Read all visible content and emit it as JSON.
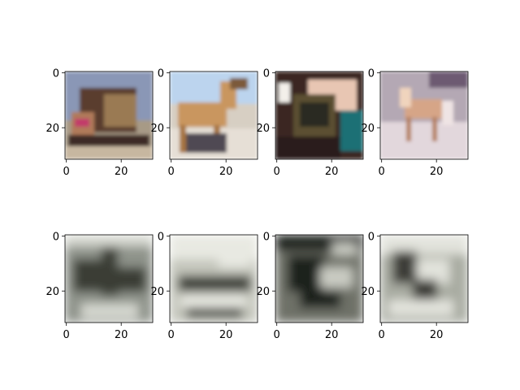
{
  "chart_data": [
    {
      "type": "image",
      "row": "original",
      "subject": "truck",
      "xlim": [
        0,
        31
      ],
      "ylim": [
        31,
        0
      ],
      "xticks": [
        0,
        20
      ],
      "yticks": [
        0,
        20
      ],
      "dominant_colors": [
        "#8a97b6",
        "#5a3e2e",
        "#b07a5a",
        "#c7b7a0"
      ]
    },
    {
      "type": "image",
      "row": "original",
      "subject": "horse",
      "xlim": [
        0,
        31
      ],
      "ylim": [
        31,
        0
      ],
      "xticks": [
        0,
        20
      ],
      "yticks": [
        0,
        20
      ],
      "dominant_colors": [
        "#bcd4ee",
        "#c9965e",
        "#4f4a52",
        "#e6dfd6"
      ]
    },
    {
      "type": "image",
      "row": "original",
      "subject": "cat held in hand",
      "xlim": [
        0,
        31
      ],
      "ylim": [
        31,
        0
      ],
      "xticks": [
        0,
        20
      ],
      "yticks": [
        0,
        20
      ],
      "dominant_colors": [
        "#3a2520",
        "#e8c6b3",
        "#1f6f74",
        "#5c5033"
      ]
    },
    {
      "type": "image",
      "row": "original",
      "subject": "pony",
      "xlim": [
        0,
        31
      ],
      "ylim": [
        31,
        0
      ],
      "xticks": [
        0,
        20
      ],
      "yticks": [
        0,
        20
      ],
      "dominant_colors": [
        "#b4a8b4",
        "#d6a587",
        "#6d5a72",
        "#e2d7dc"
      ]
    },
    {
      "type": "image",
      "row": "reconstruction",
      "subject": "blurry grayscale",
      "xlim": [
        0,
        31
      ],
      "ylim": [
        31,
        0
      ],
      "xticks": [
        0,
        20
      ],
      "yticks": [
        0,
        20
      ],
      "dominant_colors": [
        "#8e938a",
        "#3b3d36",
        "#d6d8d0"
      ]
    },
    {
      "type": "image",
      "row": "reconstruction",
      "subject": "blurry grayscale",
      "xlim": [
        0,
        31
      ],
      "ylim": [
        31,
        0
      ],
      "xticks": [
        0,
        20
      ],
      "yticks": [
        0,
        20
      ],
      "dominant_colors": [
        "#c4c6bc",
        "#3e4038",
        "#e8e9e2"
      ]
    },
    {
      "type": "image",
      "row": "reconstruction",
      "subject": "blurry grayscale",
      "xlim": [
        0,
        31
      ],
      "ylim": [
        31,
        0
      ],
      "xticks": [
        0,
        20
      ],
      "yticks": [
        0,
        20
      ],
      "dominant_colors": [
        "#6e7168",
        "#1f211c",
        "#c9cbc2"
      ]
    },
    {
      "type": "image",
      "row": "reconstruction",
      "subject": "blurry grayscale",
      "xlim": [
        0,
        31
      ],
      "ylim": [
        31,
        0
      ],
      "xticks": [
        0,
        20
      ],
      "yticks": [
        0,
        20
      ],
      "dominant_colors": [
        "#a9aca2",
        "#3c3e37",
        "#e2e3dc"
      ]
    }
  ]
}
